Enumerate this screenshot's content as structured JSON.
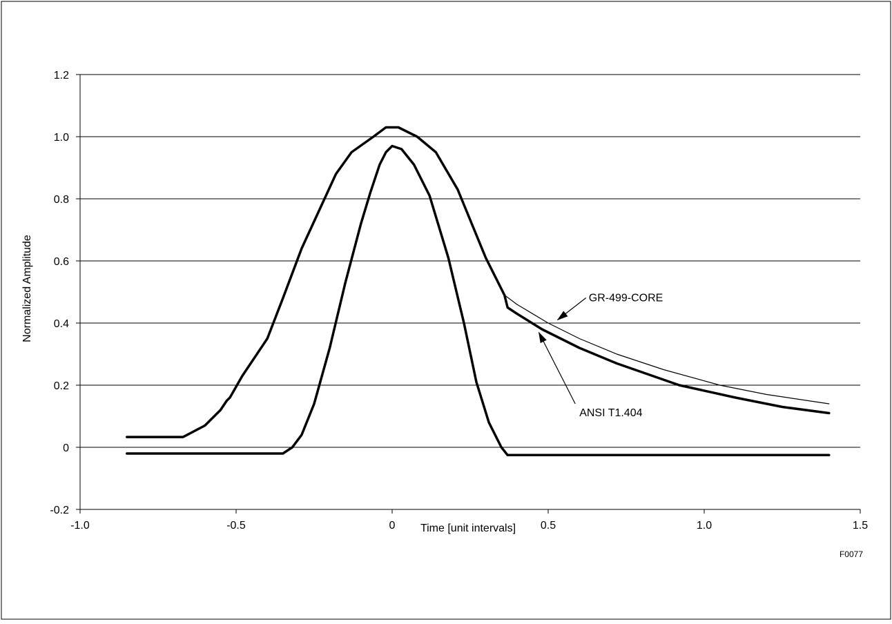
{
  "figure_id": "F0077",
  "chart_data": {
    "type": "line",
    "title": "",
    "xlabel": "Time [unit intervals]",
    "ylabel": "Normalized Amplitude",
    "xlim": [
      -1.0,
      1.5
    ],
    "ylim": [
      -0.2,
      1.2
    ],
    "x_ticks": [
      -1.0,
      -0.5,
      0,
      0.5,
      1.0,
      1.5
    ],
    "x_tick_labels": [
      "-1.0",
      "-0.5",
      "0",
      "0.5",
      "1.0",
      "1.5"
    ],
    "y_ticks": [
      -0.2,
      0,
      0.2,
      0.4,
      0.6,
      0.8,
      1.0,
      1.2
    ],
    "y_tick_labels": [
      "-0.2",
      "0",
      "0.2",
      "0.4",
      "0.6",
      "0.8",
      "1.0",
      "1.2"
    ],
    "grid": "horizontal",
    "series": [
      {
        "role": "outer-upper",
        "style": "thick",
        "points": [
          [
            -0.85,
            0.033
          ],
          [
            -0.67,
            0.033
          ],
          [
            -0.6,
            0.07
          ],
          [
            -0.55,
            0.12
          ],
          [
            -0.53,
            0.15
          ],
          [
            -0.52,
            0.16
          ],
          [
            -0.48,
            0.23
          ],
          [
            -0.4,
            0.35
          ],
          [
            -0.35,
            0.48
          ],
          [
            -0.29,
            0.64
          ],
          [
            -0.18,
            0.88
          ],
          [
            -0.13,
            0.95
          ],
          [
            -0.06,
            1.0
          ],
          [
            -0.02,
            1.03
          ],
          [
            0.02,
            1.03
          ],
          [
            0.08,
            1.0
          ],
          [
            0.14,
            0.95
          ],
          [
            0.21,
            0.83
          ],
          [
            0.3,
            0.61
          ],
          [
            0.36,
            0.49
          ]
        ]
      },
      {
        "role": "outer-upper-tail",
        "name": "GR-499-CORE",
        "style": "thin",
        "points": [
          [
            0.36,
            0.49
          ],
          [
            0.4,
            0.46
          ],
          [
            0.5,
            0.4
          ],
          [
            0.6,
            0.35
          ],
          [
            0.72,
            0.3
          ],
          [
            0.87,
            0.25
          ],
          [
            1.05,
            0.2
          ],
          [
            1.2,
            0.17
          ],
          [
            1.4,
            0.14
          ]
        ]
      },
      {
        "role": "outer-upper-tail",
        "name": "ANSI T1.404",
        "style": "thick",
        "points": [
          [
            0.36,
            0.49
          ],
          [
            0.37,
            0.45
          ],
          [
            0.4,
            0.43
          ],
          [
            0.48,
            0.38
          ],
          [
            0.6,
            0.32
          ],
          [
            0.72,
            0.27
          ],
          [
            0.92,
            0.2
          ],
          [
            1.1,
            0.16
          ],
          [
            1.25,
            0.13
          ],
          [
            1.4,
            0.11
          ]
        ]
      },
      {
        "role": "inner-lower",
        "style": "thick",
        "points": [
          [
            -0.85,
            -0.02
          ],
          [
            -0.35,
            -0.02
          ],
          [
            -0.32,
            0.0
          ],
          [
            -0.29,
            0.04
          ],
          [
            -0.25,
            0.14
          ],
          [
            -0.2,
            0.32
          ],
          [
            -0.15,
            0.53
          ],
          [
            -0.1,
            0.72
          ],
          [
            -0.07,
            0.82
          ],
          [
            -0.04,
            0.91
          ],
          [
            -0.02,
            0.95
          ],
          [
            0.0,
            0.97
          ],
          [
            0.03,
            0.96
          ],
          [
            0.07,
            0.91
          ],
          [
            0.12,
            0.81
          ],
          [
            0.18,
            0.61
          ],
          [
            0.23,
            0.4
          ],
          [
            0.27,
            0.21
          ],
          [
            0.31,
            0.08
          ],
          [
            0.35,
            0.0
          ],
          [
            0.37,
            -0.025
          ],
          [
            1.4,
            -0.025
          ]
        ]
      }
    ],
    "annotations": [
      {
        "text": "GR-499-CORE",
        "label_at": [
          0.63,
          0.47
        ],
        "arrow_to": [
          0.53,
          0.41
        ]
      },
      {
        "text": "ANSI T1.404",
        "label_at": [
          0.6,
          0.1
        ],
        "arrow_to": [
          0.47,
          0.37
        ]
      }
    ]
  }
}
